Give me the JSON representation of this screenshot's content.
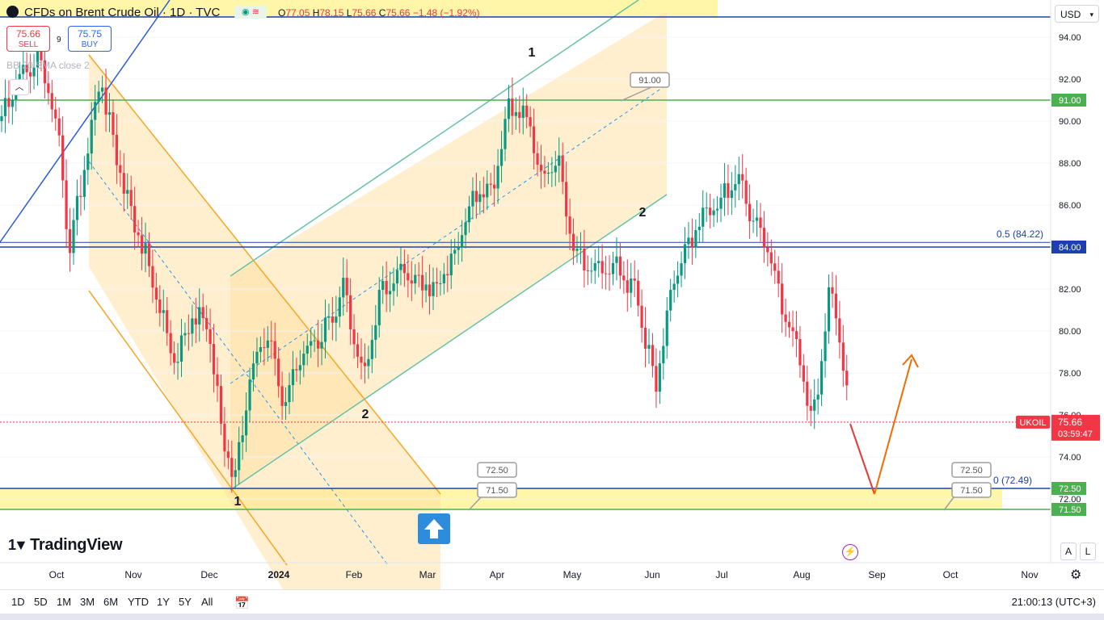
{
  "header": {
    "title": "CFDs on Brent Crude Oil · 1D · TVC",
    "ohlc": {
      "o": "77.05",
      "h": "78.15",
      "l": "75.66",
      "c": "75.66",
      "chg": "−1.48 (−1.92%)"
    }
  },
  "trade": {
    "sell_price": "75.66",
    "sell_label": "SELL",
    "buy_price": "75.75",
    "buy_label": "BUY",
    "spread": "9"
  },
  "indicator_label": "BB 20 SMA close 2",
  "currency": "USD",
  "logo_text": "TradingView",
  "colors": {
    "up": "#089981",
    "down": "#f23645",
    "band": "#ffeb3b",
    "zone": "#ffe0a0",
    "channel_green": "#66c2a5",
    "channel_orange": "#f5a623",
    "blue_line": "#1e40af"
  },
  "price_axis": {
    "ticks": [
      "94.00",
      "92.00",
      "90.00",
      "88.00",
      "86.00",
      "84.00",
      "82.00",
      "80.00",
      "78.00",
      "76.00",
      "74.00",
      "72.00"
    ],
    "tick_values": [
      94,
      92,
      90,
      88,
      86,
      84,
      82,
      80,
      78,
      76,
      74,
      72
    ],
    "marks": [
      {
        "text": "91.00",
        "value": 91,
        "color": "#4caf50"
      },
      {
        "text": "84.00",
        "value": 84,
        "color": "#1e40af"
      },
      {
        "text": "72.50",
        "value": 72.5,
        "color": "#4caf50"
      },
      {
        "text": "71.50",
        "value": 71.5,
        "color": "#4caf50"
      }
    ],
    "last": {
      "symbol": "UKOIL",
      "price": "75.66",
      "countdown": "03:59:47",
      "value": 75.66
    }
  },
  "time_axis": [
    "Oct",
    "Nov",
    "Dec",
    "2024",
    "Feb",
    "Mar",
    "Apr",
    "May",
    "Jun",
    "Jul",
    "Aug",
    "Sep",
    "Oct",
    "Nov"
  ],
  "annotations": {
    "fib_label": "0.5 (84.22)",
    "fib_zero": "0 (72.49)",
    "callouts": [
      "91.00",
      "72.50",
      "71.50",
      "72.50",
      "71.50"
    ],
    "waves": [
      "1",
      "2",
      "1",
      "2"
    ]
  },
  "ranges": [
    "1D",
    "5D",
    "1M",
    "3M",
    "6M",
    "YTD",
    "1Y",
    "5Y",
    "All"
  ],
  "clock": "21:00:13 (UTC+3)",
  "scale_buttons": [
    "A",
    "L"
  ]
}
